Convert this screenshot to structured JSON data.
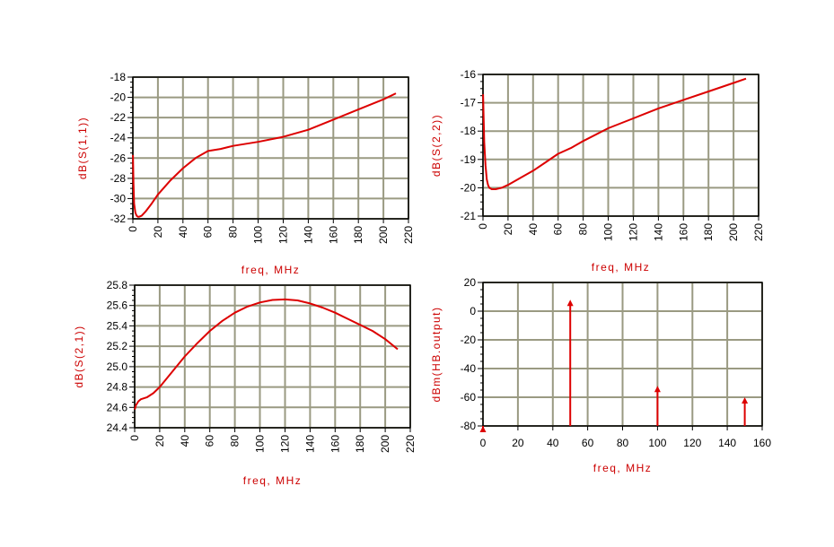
{
  "colors": {
    "trace": "#dd0000",
    "grid": "#9a9a82",
    "frame": "#000000",
    "label": "#cc0000"
  },
  "chart_data": [
    {
      "type": "line",
      "xlabel": "freq, MHz",
      "ylabel": "dB(S(1,1))",
      "xlim": [
        0,
        220
      ],
      "ylim": [
        -32,
        -18
      ],
      "xticks": [
        0,
        20,
        40,
        60,
        80,
        100,
        120,
        140,
        160,
        180,
        200,
        220
      ],
      "yticks": [
        -32,
        -30,
        -28,
        -26,
        -24,
        -22,
        -20,
        -18
      ],
      "xtick_labels": [
        "0",
        "20",
        "40",
        "60",
        "80",
        "100",
        "120",
        "140",
        "160",
        "180",
        "200",
        "220"
      ],
      "ytick_labels": [
        "-32",
        "-30",
        "-28",
        "-26",
        "-24",
        "-22",
        "-20",
        "-18"
      ],
      "grid": true,
      "series": [
        {
          "x": [
            0.1,
            0.5,
            1,
            2,
            3,
            4,
            5,
            7,
            10,
            15,
            20,
            30,
            40,
            50,
            60,
            70,
            80,
            100,
            120,
            140,
            160,
            180,
            200,
            210
          ],
          "y": [
            -25.7,
            -28.5,
            -30.5,
            -31.4,
            -31.7,
            -31.8,
            -31.8,
            -31.7,
            -31.3,
            -30.5,
            -29.6,
            -28.2,
            -27.0,
            -26.0,
            -25.3,
            -25.1,
            -24.8,
            -24.4,
            -23.9,
            -23.2,
            -22.2,
            -21.2,
            -20.2,
            -19.6
          ]
        }
      ]
    },
    {
      "type": "line",
      "xlabel": "freq, MHz",
      "ylabel": "dB(S(2,2))",
      "xlim": [
        0,
        220
      ],
      "ylim": [
        -21,
        -16
      ],
      "xticks": [
        0,
        20,
        40,
        60,
        80,
        100,
        120,
        140,
        160,
        180,
        200,
        220
      ],
      "yticks": [
        -21,
        -20,
        -19,
        -18,
        -17,
        -16
      ],
      "xtick_labels": [
        "0",
        "20",
        "40",
        "60",
        "80",
        "100",
        "120",
        "140",
        "160",
        "180",
        "200",
        "220"
      ],
      "ytick_labels": [
        "-21",
        "-20",
        "-19",
        "-18",
        "-17",
        "-16"
      ],
      "grid": true,
      "series": [
        {
          "x": [
            0.1,
            0.5,
            1,
            2,
            3,
            4,
            5,
            7,
            10,
            15,
            20,
            30,
            40,
            50,
            60,
            70,
            80,
            100,
            120,
            140,
            160,
            180,
            200,
            210
          ],
          "y": [
            -16.7,
            -17.5,
            -18.4,
            -19.2,
            -19.7,
            -19.9,
            -20.0,
            -20.05,
            -20.05,
            -20.0,
            -19.9,
            -19.65,
            -19.4,
            -19.1,
            -18.8,
            -18.6,
            -18.35,
            -17.9,
            -17.55,
            -17.2,
            -16.9,
            -16.6,
            -16.3,
            -16.15
          ]
        }
      ]
    },
    {
      "type": "line",
      "xlabel": "freq, MHz",
      "ylabel": "dB(S(2,1))",
      "xlim": [
        0,
        220
      ],
      "ylim": [
        24.4,
        25.8
      ],
      "xticks": [
        0,
        20,
        40,
        60,
        80,
        100,
        120,
        140,
        160,
        180,
        200,
        220
      ],
      "yticks": [
        24.4,
        24.6,
        24.8,
        25.0,
        25.2,
        25.4,
        25.6,
        25.8
      ],
      "xtick_labels": [
        "0",
        "20",
        "40",
        "60",
        "80",
        "100",
        "120",
        "140",
        "160",
        "180",
        "200",
        "220"
      ],
      "ytick_labels": [
        "24.4",
        "24.6",
        "24.8",
        "25.0",
        "25.2",
        "25.4",
        "25.6",
        "25.8"
      ],
      "grid": true,
      "series": [
        {
          "x": [
            0.1,
            1,
            3,
            5,
            10,
            15,
            20,
            30,
            40,
            50,
            60,
            70,
            80,
            90,
            100,
            110,
            120,
            130,
            140,
            150,
            160,
            170,
            180,
            190,
            200,
            210
          ],
          "y": [
            24.58,
            24.62,
            24.66,
            24.68,
            24.7,
            24.74,
            24.8,
            24.95,
            25.1,
            25.23,
            25.35,
            25.45,
            25.53,
            25.59,
            25.63,
            25.655,
            25.66,
            25.65,
            25.62,
            25.58,
            25.53,
            25.47,
            25.41,
            25.35,
            25.27,
            25.17
          ]
        }
      ]
    },
    {
      "type": "bar",
      "xlabel": "freq, MHz",
      "ylabel": "dBm(HB.output)",
      "xlim": [
        0,
        160
      ],
      "ylim": [
        -80,
        20
      ],
      "xticks": [
        0,
        20,
        40,
        60,
        80,
        100,
        120,
        140,
        160
      ],
      "yticks": [
        -80,
        -60,
        -40,
        -20,
        0,
        20
      ],
      "xtick_labels": [
        "0",
        "20",
        "40",
        "60",
        "80",
        "100",
        "120",
        "140",
        "160"
      ],
      "ytick_labels": [
        "-80",
        "-60",
        "-40",
        "-20",
        "0",
        "20"
      ],
      "grid": true,
      "series": [
        {
          "x": [
            0,
            50,
            100,
            150
          ],
          "y": [
            -80,
            8,
            -52,
            -60
          ]
        }
      ]
    }
  ]
}
